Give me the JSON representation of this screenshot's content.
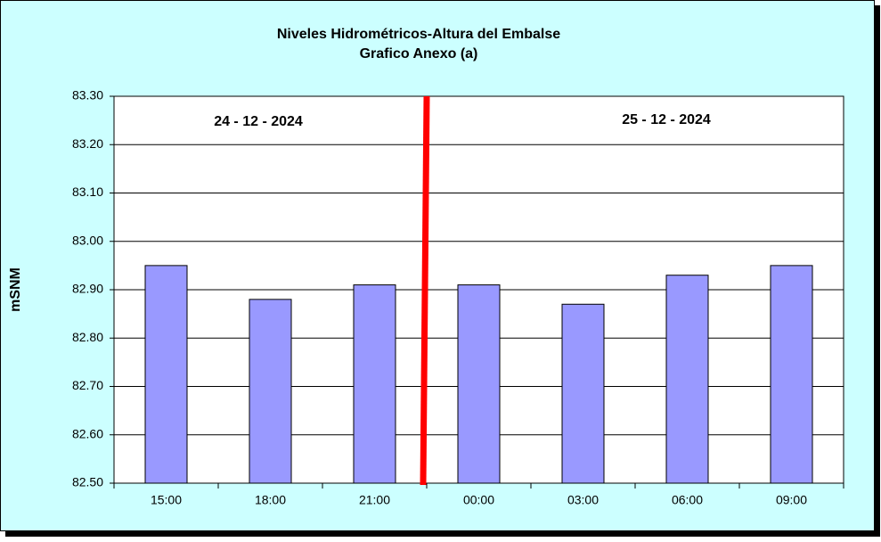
{
  "chart_data": {
    "type": "bar",
    "title": "Niveles Hidrométricos-Altura del Embalse",
    "subtitle": "Grafico Anexo (a)",
    "y_label": "mSNM",
    "annotations": [
      "24 - 12 - 2024",
      "25 - 12 - 2024"
    ],
    "categories": [
      "15:00",
      "18:00",
      "21:00",
      "00:00",
      "03:00",
      "06:00",
      "09:00"
    ],
    "values": [
      82.95,
      82.88,
      82.91,
      82.91,
      82.87,
      82.93,
      82.95
    ],
    "color": "#9999ff",
    "ylim": [
      82.5,
      83.3
    ],
    "yticks": [
      {
        "value": 82.5,
        "label": "82.50"
      },
      {
        "value": 82.6,
        "label": "82.60"
      },
      {
        "value": 82.7,
        "label": "82.70"
      },
      {
        "value": 82.8,
        "label": "82.80"
      },
      {
        "value": 82.9,
        "label": "82.90"
      },
      {
        "value": 83.0,
        "label": "83.00"
      },
      {
        "value": 83.1,
        "label": "83.10"
      },
      {
        "value": 83.2,
        "label": "83.20"
      },
      {
        "value": 83.3,
        "label": "83.30"
      }
    ],
    "grid": true
  }
}
